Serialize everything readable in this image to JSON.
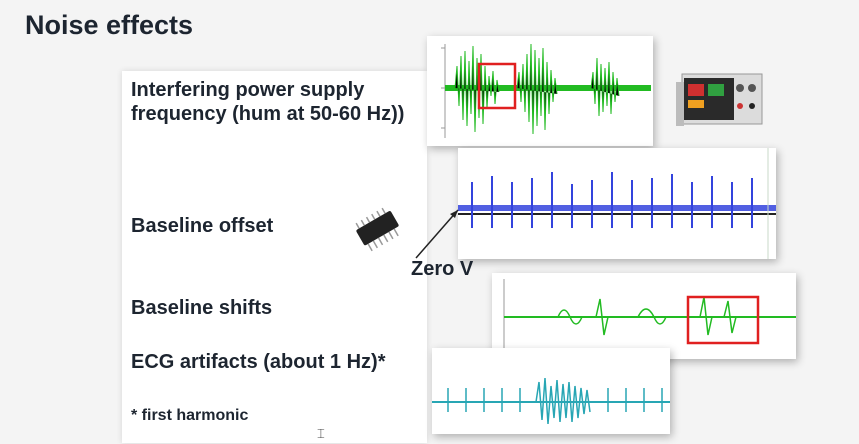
{
  "slide": {
    "title": "Noise effects",
    "items": [
      {
        "label": "Interfering power supply frequency (hum at 50-60 Hz))"
      },
      {
        "label": "Baseline offset"
      },
      {
        "label": "Baseline shifts"
      },
      {
        "label": "ECG artifacts (about 1 Hz)*"
      }
    ],
    "footnote": "* first harmonic",
    "annotation": "Zero V"
  },
  "colors": {
    "green_signal": "#22bb22",
    "blue_signal": "#3344dd",
    "teal_signal": "#28a6b4",
    "highlight_box": "#e02020",
    "text": "#1d2530"
  },
  "images": {
    "signal1": "emg-signal-hum-plot",
    "signal2": "emg-signal-offset-plot",
    "signal3": "emg-signal-baseline-shift-plot",
    "signal4": "emg-signal-ecg-artifact-plot",
    "power_supply": "power-supply-device",
    "chip": "integrated-circuit-chip"
  }
}
